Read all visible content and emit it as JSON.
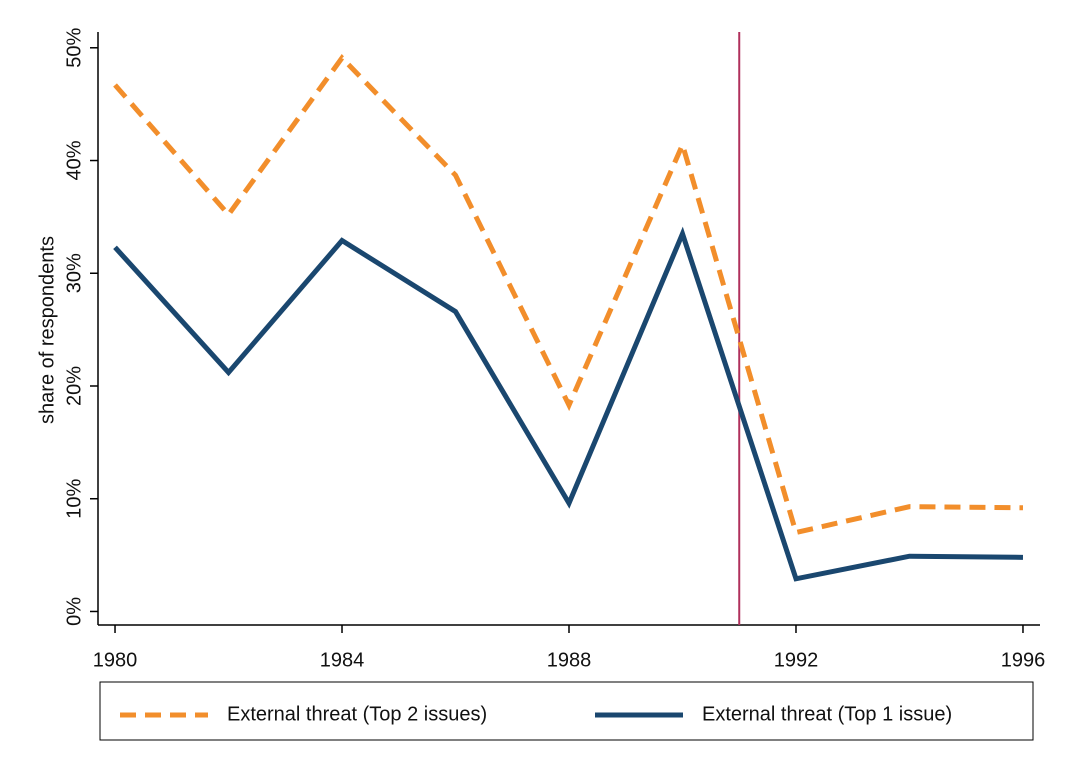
{
  "chart_data": {
    "type": "line",
    "y_label": "share of respondents",
    "x": [
      1980,
      1982,
      1984,
      1986,
      1988,
      1990,
      1992,
      1994,
      1996
    ],
    "series": [
      {
        "name": "External threat (Top 2 issues)",
        "color": "#f28e2b",
        "dash": true,
        "values": [
          46.7,
          35.2,
          49.1,
          38.7,
          18.3,
          41.4,
          7.0,
          9.3,
          9.2
        ]
      },
      {
        "name": "External threat (Top 1 issue)",
        "color": "#1a476f",
        "dash": false,
        "values": [
          32.3,
          21.2,
          32.9,
          26.6,
          9.6,
          33.5,
          2.9,
          4.9,
          4.8
        ]
      }
    ],
    "xlim": [
      1979.7,
      1996.3
    ],
    "ylim": [
      -1.2,
      51.4
    ],
    "xticks": [
      1980,
      1984,
      1988,
      1992,
      1996
    ],
    "yticks": [
      {
        "value": 0,
        "label": "0%"
      },
      {
        "value": 10,
        "label": "10%"
      },
      {
        "value": 20,
        "label": "20%"
      },
      {
        "value": 30,
        "label": "30%"
      },
      {
        "value": 40,
        "label": "40%"
      },
      {
        "value": 50,
        "label": "50%"
      }
    ],
    "vline": {
      "x": 1991,
      "color": "#b0305c"
    },
    "grid": false,
    "legend": "bottom"
  }
}
